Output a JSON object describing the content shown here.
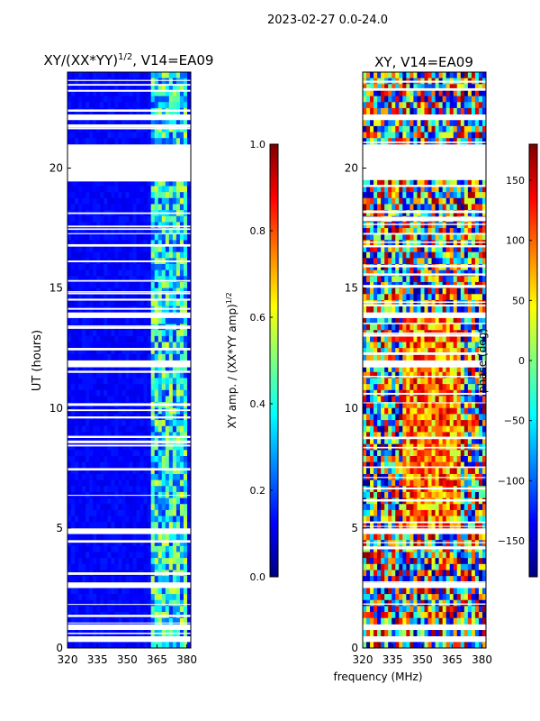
{
  "figure": {
    "suptitle": "2023-02-27 0.0-24.0",
    "xlabel": "frequency (MHz)"
  },
  "chart_data": [
    {
      "type": "heatmap",
      "title": "XY/(XX*YY)",
      "title_exponent": "1/2",
      "title_suffix": ", V14=EA09",
      "ylabel": "UT (hours)",
      "xlim": [
        320,
        382
      ],
      "ylim": [
        0,
        24
      ],
      "xticks": [
        "320",
        "335",
        "350",
        "365",
        "380"
      ],
      "xtick_values": [
        320,
        335,
        350,
        365,
        380
      ],
      "yticks": [
        "0",
        "5",
        "10",
        "15",
        "20"
      ],
      "ytick_values": [
        0,
        5,
        10,
        15,
        20
      ],
      "colormap": "jet",
      "colorbar": {
        "label": "XY amp. / (XX*YY amp)",
        "label_exponent": "1/2",
        "range": [
          0.0,
          1.0
        ],
        "ticks": [
          "0.0",
          "0.2",
          "0.4",
          "0.6",
          "0.8",
          "1.0"
        ],
        "tick_values": [
          0.0,
          0.2,
          0.4,
          0.6,
          0.8,
          1.0
        ]
      }
    },
    {
      "type": "heatmap",
      "title": "XY, V14=EA09",
      "xlim": [
        320,
        382
      ],
      "ylim": [
        0,
        24
      ],
      "xticks": [
        "320",
        "335",
        "350",
        "365",
        "380"
      ],
      "xtick_values": [
        320,
        335,
        350,
        365,
        380
      ],
      "yticks": [
        "0",
        "5",
        "10",
        "15",
        "20"
      ],
      "ytick_values": [
        0,
        5,
        10,
        15,
        20
      ],
      "colormap": "jet",
      "colorbar": {
        "label": "phase (deg)",
        "range": [
          -180,
          180
        ],
        "ticks": [
          "-150",
          "-100",
          "-50",
          "0",
          "50",
          "100",
          "150"
        ],
        "tick_values": [
          -150,
          -100,
          -50,
          0,
          50,
          100,
          150
        ]
      }
    }
  ]
}
